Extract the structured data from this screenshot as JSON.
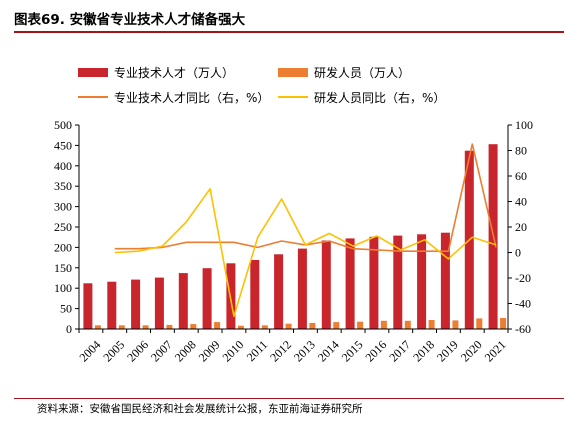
{
  "header": {
    "title": "图表69. 安徽省专业技术人才储备强大"
  },
  "footer": {
    "source": "资料来源：安徽省国民经济和社会发展统计公报，东亚前海证券研究所"
  },
  "colors": {
    "accent_rule": "#a3131b",
    "talent_bar": "#c8252c",
    "staff_bar": "#ed7d31",
    "talent_yoy_line": "#ed7d31",
    "staff_yoy_line": "#ffc000"
  },
  "chart_data": {
    "type": "bar",
    "categories": [
      "2004",
      "2005",
      "2006",
      "2007",
      "2008",
      "2009",
      "2010",
      "2011",
      "2012",
      "2013",
      "2014",
      "2015",
      "2016",
      "2017",
      "2018",
      "2019",
      "2020",
      "2021"
    ],
    "y_left": {
      "ylim": [
        0,
        500
      ],
      "ticks": [
        0,
        50,
        100,
        150,
        200,
        250,
        300,
        350,
        400,
        450,
        500
      ]
    },
    "y_right": {
      "ylim": [
        -60,
        100
      ],
      "ticks": [
        -60,
        -40,
        -20,
        0,
        20,
        40,
        60,
        80,
        100
      ]
    },
    "grid": false,
    "legend_position": "top",
    "series": [
      {
        "name": "专业技术人才（万人）",
        "type": "bar",
        "axis": "left",
        "values": [
          112,
          116,
          121,
          126,
          137,
          149,
          161,
          169,
          183,
          197,
          217,
          222,
          226,
          229,
          232,
          236,
          437,
          453
        ]
      },
      {
        "name": "研发人员（万人）",
        "type": "bar",
        "axis": "left",
        "values": [
          9,
          9,
          9,
          10,
          12,
          17,
          8,
          9,
          13,
          15,
          17,
          18,
          20,
          20,
          22,
          21,
          26,
          27
        ]
      },
      {
        "name": "专业技术人才同比（右，%）",
        "type": "line",
        "axis": "right",
        "values": [
          null,
          3,
          3,
          4,
          8,
          8,
          8,
          4,
          9,
          6,
          9,
          3,
          2,
          1,
          1,
          1,
          85,
          4
        ]
      },
      {
        "name": "研发人员同比（右，%）",
        "type": "line",
        "axis": "right",
        "values": [
          null,
          0,
          1,
          5,
          24,
          50,
          -50,
          12,
          42,
          6,
          15,
          5,
          13,
          2,
          10,
          -5,
          12,
          6
        ]
      }
    ]
  }
}
